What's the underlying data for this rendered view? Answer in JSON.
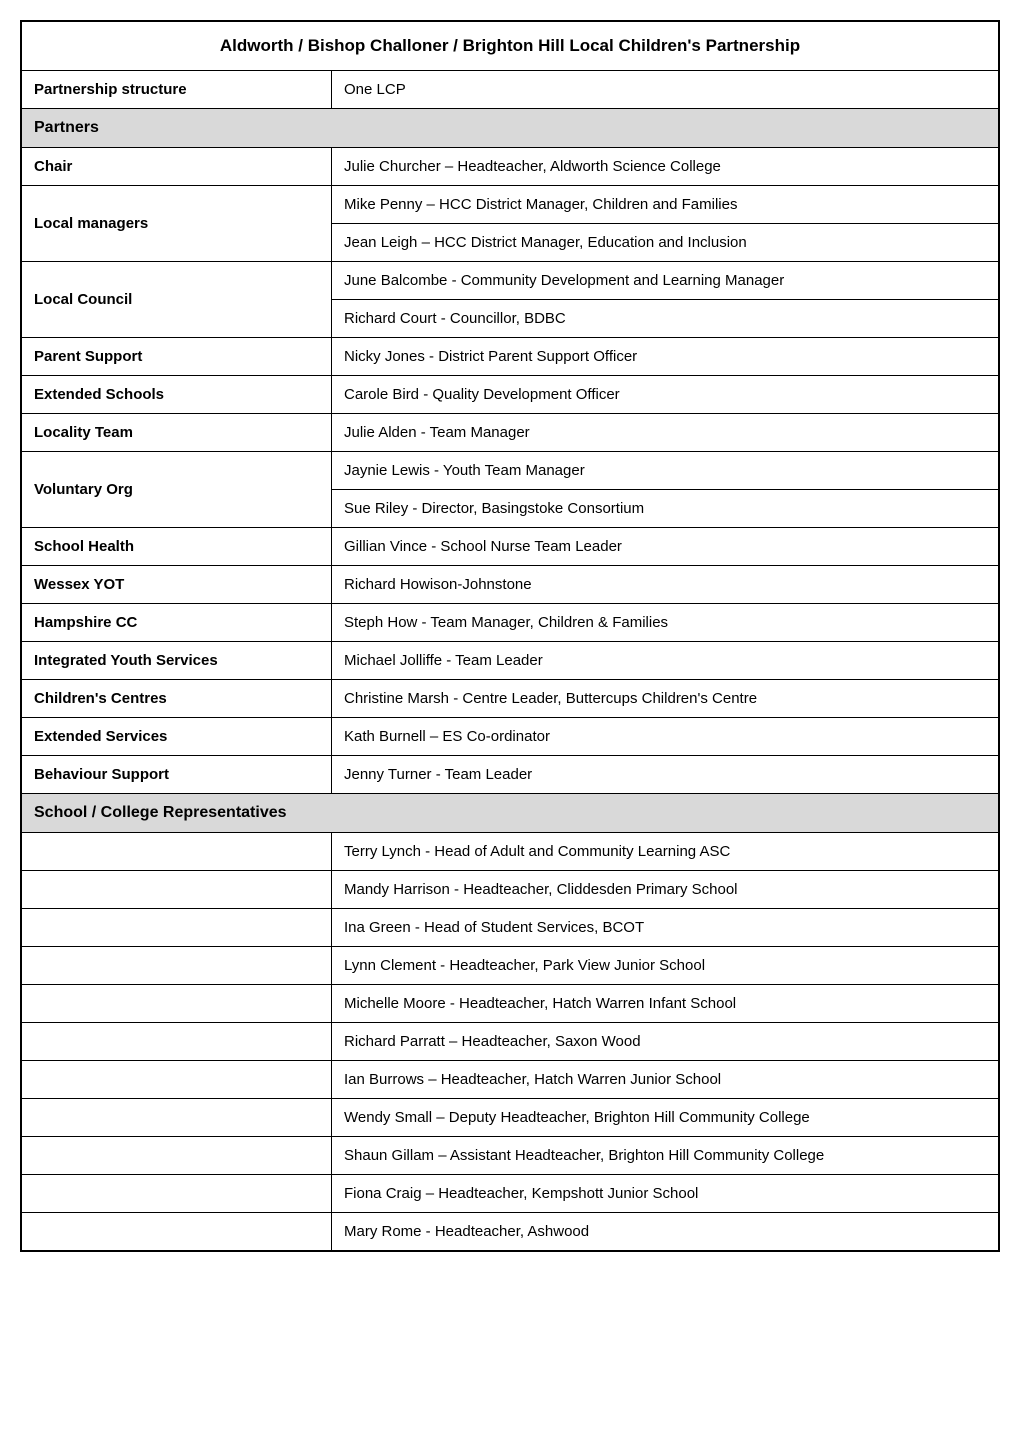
{
  "title": "Aldworth / Bishop Challoner / Brighton Hill Local Children's Partnership",
  "partnership_structure": {
    "label": "Partnership structure",
    "value": "One LCP"
  },
  "partners_header": "Partners",
  "partners": {
    "chair": {
      "label": "Chair",
      "value": "Julie Churcher – Headteacher, Aldworth Science College"
    },
    "local_managers": {
      "label": "Local managers",
      "values": [
        "Mike Penny – HCC District Manager, Children and Families",
        "Jean Leigh – HCC District Manager, Education and Inclusion"
      ]
    },
    "local_council": {
      "label": "Local Council",
      "values": [
        "June Balcombe - Community Development and Learning Manager",
        "Richard Court - Councillor, BDBC"
      ]
    },
    "parent_support": {
      "label": "Parent Support",
      "value": "Nicky Jones - District Parent Support Officer"
    },
    "extended_schools": {
      "label": "Extended Schools",
      "value": "Carole Bird - Quality Development Officer"
    },
    "locality_team": {
      "label": "Locality Team",
      "value": "Julie Alden - Team Manager"
    },
    "voluntary_org": {
      "label": "Voluntary Org",
      "values": [
        "Jaynie Lewis - Youth Team Manager",
        "Sue Riley - Director, Basingstoke Consortium"
      ]
    },
    "school_health": {
      "label": "School Health",
      "value": "Gillian Vince - School Nurse Team Leader"
    },
    "wessex_yot": {
      "label": "Wessex YOT",
      "value": "Richard Howison-Johnstone"
    },
    "hampshire_cc": {
      "label": "Hampshire CC",
      "value": "Steph How - Team Manager, Children & Families"
    },
    "integrated_youth": {
      "label": "Integrated Youth Services",
      "value": "Michael Jolliffe - Team Leader"
    },
    "childrens_centres": {
      "label": "Children's Centres",
      "value": "Christine Marsh - Centre Leader, Buttercups Children's Centre"
    },
    "extended_services": {
      "label": "Extended Services",
      "value": "Kath Burnell – ES Co-ordinator"
    },
    "behaviour_support": {
      "label": "Behaviour Support",
      "value": "Jenny Turner - Team Leader"
    }
  },
  "school_reps_header": "School / College Representatives",
  "school_reps": [
    "Terry Lynch - Head of Adult and Community Learning ASC",
    "Mandy Harrison - Headteacher, Cliddesden Primary School",
    "Ina Green - Head of Student Services, BCOT",
    "Lynn Clement  - Headteacher, Park View Junior School",
    "Michelle Moore - Headteacher, Hatch Warren Infant School",
    "Richard Parratt – Headteacher, Saxon Wood",
    "Ian Burrows – Headteacher, Hatch Warren Junior School",
    "Wendy Small – Deputy Headteacher, Brighton Hill Community College",
    "Shaun Gillam – Assistant Headteacher, Brighton Hill Community College",
    "Fiona Craig – Headteacher, Kempshott Junior School",
    "Mary Rome - Headteacher, Ashwood"
  ],
  "colors": {
    "border": "#000000",
    "section_bg": "#d9d9d9",
    "background": "#ffffff"
  }
}
